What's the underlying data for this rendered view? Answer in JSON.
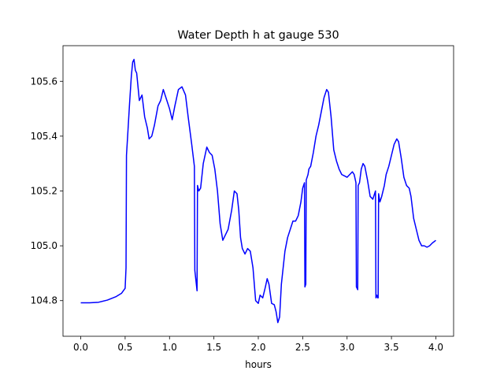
{
  "chart_data": {
    "type": "line",
    "title": "Water Depth h at gauge 530",
    "xlabel": "hours",
    "ylabel": "",
    "xlim": [
      -0.2,
      4.2
    ],
    "ylim": [
      104.67,
      105.73
    ],
    "grid": false,
    "xticks": [
      0.0,
      0.5,
      1.0,
      1.5,
      2.0,
      2.5,
      3.0,
      3.5,
      4.0
    ],
    "xtick_labels": [
      "0.0",
      "0.5",
      "1.0",
      "1.5",
      "2.0",
      "2.5",
      "3.0",
      "3.5",
      "4.0"
    ],
    "yticks": [
      104.8,
      105.0,
      105.2,
      105.4,
      105.6
    ],
    "ytick_labels": [
      "104.8",
      "105.0",
      "105.2",
      "105.4",
      "105.6"
    ],
    "series": [
      {
        "color": "#0000ff",
        "points": [
          [
            0.0,
            104.792
          ],
          [
            0.1,
            104.792
          ],
          [
            0.2,
            104.794
          ],
          [
            0.3,
            104.802
          ],
          [
            0.4,
            104.815
          ],
          [
            0.46,
            104.827
          ],
          [
            0.5,
            104.845
          ],
          [
            0.51,
            104.92
          ],
          [
            0.515,
            105.33
          ],
          [
            0.53,
            105.41
          ],
          [
            0.55,
            105.52
          ],
          [
            0.57,
            105.62
          ],
          [
            0.585,
            105.67
          ],
          [
            0.6,
            105.68
          ],
          [
            0.615,
            105.64
          ],
          [
            0.63,
            105.63
          ],
          [
            0.66,
            105.53
          ],
          [
            0.69,
            105.55
          ],
          [
            0.72,
            105.47
          ],
          [
            0.75,
            105.43
          ],
          [
            0.77,
            105.39
          ],
          [
            0.8,
            105.4
          ],
          [
            0.83,
            105.44
          ],
          [
            0.87,
            105.51
          ],
          [
            0.9,
            105.53
          ],
          [
            0.93,
            105.57
          ],
          [
            0.96,
            105.54
          ],
          [
            1.0,
            105.5
          ],
          [
            1.03,
            105.46
          ],
          [
            1.06,
            105.51
          ],
          [
            1.1,
            105.57
          ],
          [
            1.14,
            105.58
          ],
          [
            1.18,
            105.55
          ],
          [
            1.21,
            105.47
          ],
          [
            1.25,
            105.37
          ],
          [
            1.28,
            105.29
          ],
          [
            1.285,
            104.91
          ],
          [
            1.31,
            104.836
          ],
          [
            1.315,
            105.22
          ],
          [
            1.33,
            105.2
          ],
          [
            1.35,
            105.21
          ],
          [
            1.38,
            105.3
          ],
          [
            1.42,
            105.36
          ],
          [
            1.45,
            105.34
          ],
          [
            1.48,
            105.33
          ],
          [
            1.51,
            105.28
          ],
          [
            1.54,
            105.2
          ],
          [
            1.57,
            105.08
          ],
          [
            1.6,
            105.02
          ],
          [
            1.63,
            105.04
          ],
          [
            1.66,
            105.06
          ],
          [
            1.7,
            105.13
          ],
          [
            1.73,
            105.2
          ],
          [
            1.76,
            105.19
          ],
          [
            1.78,
            105.13
          ],
          [
            1.8,
            105.03
          ],
          [
            1.82,
            104.99
          ],
          [
            1.85,
            104.97
          ],
          [
            1.88,
            104.99
          ],
          [
            1.91,
            104.98
          ],
          [
            1.94,
            104.92
          ],
          [
            1.97,
            104.8
          ],
          [
            2.0,
            104.79
          ],
          [
            2.02,
            104.82
          ],
          [
            2.05,
            104.81
          ],
          [
            2.08,
            104.85
          ],
          [
            2.1,
            104.88
          ],
          [
            2.12,
            104.86
          ],
          [
            2.15,
            104.79
          ],
          [
            2.18,
            104.785
          ],
          [
            2.2,
            104.76
          ],
          [
            2.22,
            104.72
          ],
          [
            2.24,
            104.74
          ],
          [
            2.26,
            104.86
          ],
          [
            2.3,
            104.98
          ],
          [
            2.33,
            105.03
          ],
          [
            2.36,
            105.06
          ],
          [
            2.39,
            105.09
          ],
          [
            2.42,
            105.09
          ],
          [
            2.45,
            105.11
          ],
          [
            2.48,
            105.16
          ],
          [
            2.5,
            105.21
          ],
          [
            2.52,
            105.23
          ],
          [
            2.525,
            104.85
          ],
          [
            2.535,
            104.86
          ],
          [
            2.54,
            105.24
          ],
          [
            2.56,
            105.26
          ],
          [
            2.57,
            105.28
          ],
          [
            2.59,
            105.29
          ],
          [
            2.62,
            105.34
          ],
          [
            2.65,
            105.4
          ],
          [
            2.68,
            105.44
          ],
          [
            2.71,
            105.49
          ],
          [
            2.74,
            105.54
          ],
          [
            2.77,
            105.57
          ],
          [
            2.79,
            105.56
          ],
          [
            2.82,
            105.47
          ],
          [
            2.85,
            105.35
          ],
          [
            2.88,
            105.31
          ],
          [
            2.91,
            105.28
          ],
          [
            2.94,
            105.26
          ],
          [
            2.97,
            105.255
          ],
          [
            3.0,
            105.25
          ],
          [
            3.03,
            105.26
          ],
          [
            3.06,
            105.27
          ],
          [
            3.08,
            105.26
          ],
          [
            3.1,
            105.23
          ],
          [
            3.105,
            104.85
          ],
          [
            3.12,
            104.84
          ],
          [
            3.125,
            105.22
          ],
          [
            3.14,
            105.23
          ],
          [
            3.16,
            105.28
          ],
          [
            3.18,
            105.3
          ],
          [
            3.2,
            105.29
          ],
          [
            3.23,
            105.24
          ],
          [
            3.26,
            105.18
          ],
          [
            3.29,
            105.17
          ],
          [
            3.31,
            105.19
          ],
          [
            3.32,
            105.2
          ],
          [
            3.325,
            104.81
          ],
          [
            3.335,
            104.82
          ],
          [
            3.345,
            104.81
          ],
          [
            3.35,
            104.81
          ],
          [
            3.355,
            105.19
          ],
          [
            3.37,
            105.16
          ],
          [
            3.39,
            105.18
          ],
          [
            3.42,
            105.22
          ],
          [
            3.44,
            105.26
          ],
          [
            3.47,
            105.29
          ],
          [
            3.5,
            105.33
          ],
          [
            3.53,
            105.37
          ],
          [
            3.56,
            105.39
          ],
          [
            3.58,
            105.38
          ],
          [
            3.61,
            105.32
          ],
          [
            3.64,
            105.25
          ],
          [
            3.67,
            105.22
          ],
          [
            3.7,
            105.21
          ],
          [
            3.72,
            105.18
          ],
          [
            3.75,
            105.1
          ],
          [
            3.78,
            105.06
          ],
          [
            3.81,
            105.02
          ],
          [
            3.84,
            105.0
          ],
          [
            3.87,
            105.0
          ],
          [
            3.9,
            104.995
          ],
          [
            3.93,
            105.0
          ],
          [
            3.96,
            105.01
          ],
          [
            4.0,
            105.02
          ]
        ]
      }
    ]
  },
  "colors": {
    "line": "#0000ff",
    "axes": "#000000",
    "background": "#ffffff"
  }
}
